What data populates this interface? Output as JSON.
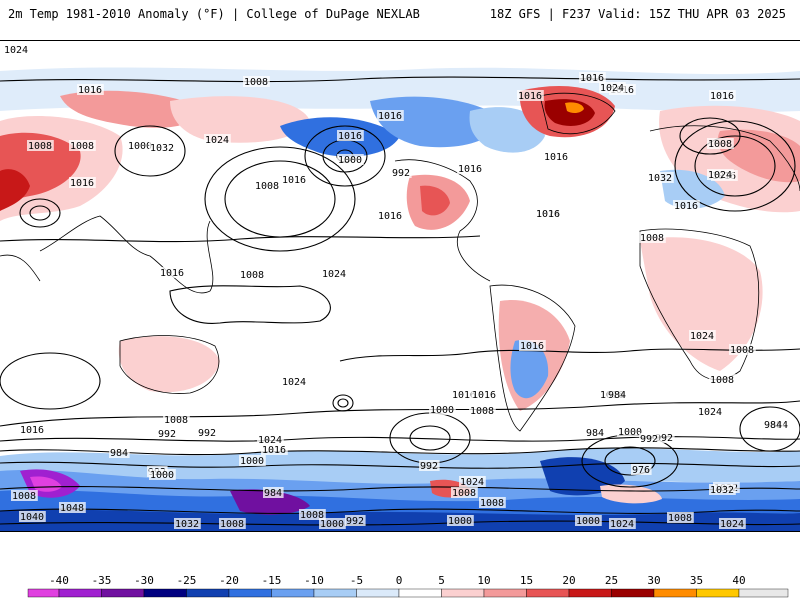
{
  "header": {
    "title": "2m Temp 1981-2010 Anomaly (°F) | College of DuPage NEXLAB",
    "run_info": "18Z GFS | F237 Valid: 15Z THU APR 03 2025"
  },
  "isobar_labels": [
    "1008",
    "1016",
    "1016",
    "1016",
    "1016",
    "1008",
    "1008",
    "1000",
    "1024",
    "1032",
    "1016",
    "1016",
    "1008",
    "1000",
    "992",
    "1016",
    "1024",
    "1016",
    "1016",
    "1024",
    "1016",
    "1032",
    "1024",
    "1016",
    "1008",
    "1016",
    "1008",
    "1008",
    "1008",
    "1016",
    "1024",
    "1016",
    "1016",
    "1016",
    "1024",
    "1008",
    "1016",
    "1024",
    "1016",
    "1000",
    "1024",
    "1008",
    "1008",
    "1016",
    "992",
    "984",
    "1024",
    "1016",
    "1000",
    "992",
    "992",
    "1000",
    "1000",
    "1008",
    "984",
    "992",
    "976",
    "992",
    "984",
    "1048",
    "1040",
    "1008",
    "1032",
    "1000",
    "1024",
    "1032",
    "984",
    "1000",
    "992",
    "1008",
    "1016",
    "1024",
    "1000",
    "1008",
    "1024",
    "1032",
    "1024",
    "992",
    "984",
    "1008",
    "1008",
    "984",
    "1016"
  ],
  "colorbar": {
    "ticks": [
      "-40",
      "-35",
      "-30",
      "-25",
      "-20",
      "-15",
      "-10",
      "-5",
      "0",
      "5",
      "10",
      "15",
      "20",
      "25",
      "30",
      "35",
      "40"
    ],
    "colors": [
      "#e040e0",
      "#a020d0",
      "#7010a0",
      "#000080",
      "#1040b0",
      "#3070e0",
      "#6aa0f0",
      "#a8cdf5",
      "#dbeafa",
      "#ffffff",
      "#fbd0d0",
      "#f39a9a",
      "#e75555",
      "#c81818",
      "#9a0000",
      "#ff8c00",
      "#ffc800",
      "#e8e8e8"
    ]
  }
}
